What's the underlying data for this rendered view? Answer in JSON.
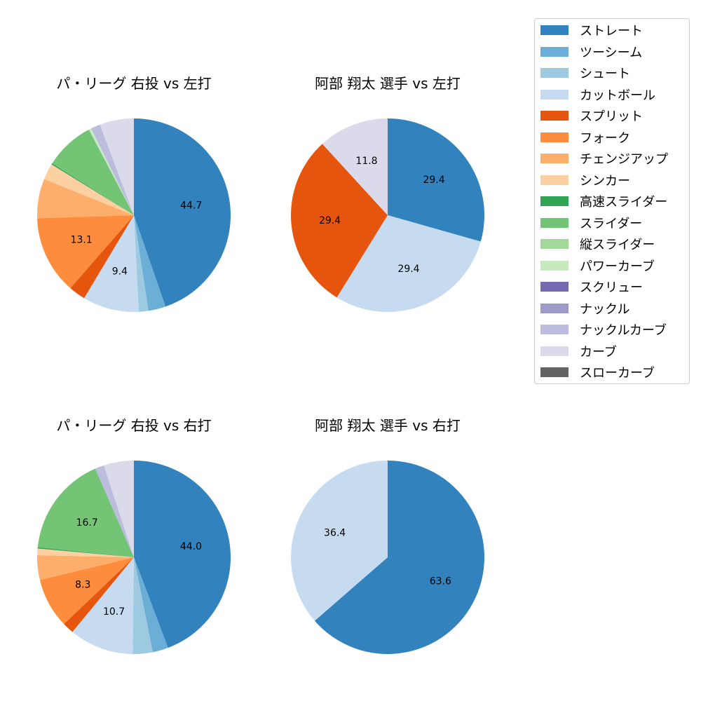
{
  "legend": [
    {
      "name": "ストレート",
      "color": "#3182bd"
    },
    {
      "name": "ツーシーム",
      "color": "#6baed6"
    },
    {
      "name": "シュート",
      "color": "#9ecae1"
    },
    {
      "name": "カットボール",
      "color": "#c6dbef"
    },
    {
      "name": "スプリット",
      "color": "#e6550d"
    },
    {
      "name": "フォーク",
      "color": "#fd8d3c"
    },
    {
      "name": "チェンジアップ",
      "color": "#fdae6b"
    },
    {
      "name": "シンカー",
      "color": "#fdd0a2"
    },
    {
      "name": "高速スライダー",
      "color": "#31a354"
    },
    {
      "name": "スライダー",
      "color": "#74c476"
    },
    {
      "name": "縦スライダー",
      "color": "#a1d99b"
    },
    {
      "name": "パワーカーブ",
      "color": "#c7e9c0"
    },
    {
      "name": "スクリュー",
      "color": "#756bb1"
    },
    {
      "name": "ナックル",
      "color": "#9e9ac8"
    },
    {
      "name": "ナックルカーブ",
      "color": "#bcbddc"
    },
    {
      "name": "カーブ",
      "color": "#dadaeb"
    },
    {
      "name": "スローカーブ",
      "color": "#636363"
    }
  ],
  "chart_data": [
    {
      "type": "pie",
      "title": "パ・リーグ 右投 vs 左打",
      "labels": [
        "ストレート",
        "ツーシーム",
        "シュート",
        "カットボール",
        "スプリット",
        "フォーク",
        "チェンジアップ",
        "シンカー",
        "高速スライダー",
        "スライダー",
        "パワーカーブ",
        "ナックルカーブ",
        "カーブ"
      ],
      "values": [
        44.7,
        2.9,
        1.6,
        9.4,
        2.8,
        13.1,
        6.6,
        2.7,
        0.2,
        8.3,
        0.4,
        1.6,
        5.7
      ],
      "data_labels": [
        "44.7",
        "",
        "",
        "9.4",
        "",
        "13.1",
        "",
        "",
        "",
        "",
        "",
        "",
        ""
      ]
    },
    {
      "type": "pie",
      "title": "阿部 翔太 選手 vs 左打",
      "labels": [
        "ストレート",
        "カットボール",
        "スプリット",
        "カーブ"
      ],
      "values": [
        29.4,
        29.4,
        29.4,
        11.8
      ],
      "data_labels": [
        "29.4",
        "29.4",
        "29.4",
        "11.8"
      ]
    },
    {
      "type": "pie",
      "title": "パ・リーグ 右投 vs 右打",
      "labels": [
        "ストレート",
        "ツーシーム",
        "シュート",
        "カットボール",
        "スプリット",
        "フォーク",
        "チェンジアップ",
        "シンカー",
        "高速スライダー",
        "スライダー",
        "ナックルカーブ",
        "カーブ"
      ],
      "values": [
        44.0,
        2.6,
        3.3,
        10.7,
        1.9,
        8.3,
        4.1,
        1.1,
        0.2,
        16.7,
        1.5,
        5.0
      ],
      "data_labels": [
        "44.0",
        "",
        "",
        "10.7",
        "",
        "8.3",
        "",
        "",
        "",
        "16.7",
        "",
        ""
      ]
    },
    {
      "type": "pie",
      "title": "阿部 翔太 選手 vs 右打",
      "labels": [
        "ストレート",
        "カットボール"
      ],
      "values": [
        63.6,
        36.4
      ],
      "data_labels": [
        "63.6",
        "36.4"
      ]
    }
  ]
}
